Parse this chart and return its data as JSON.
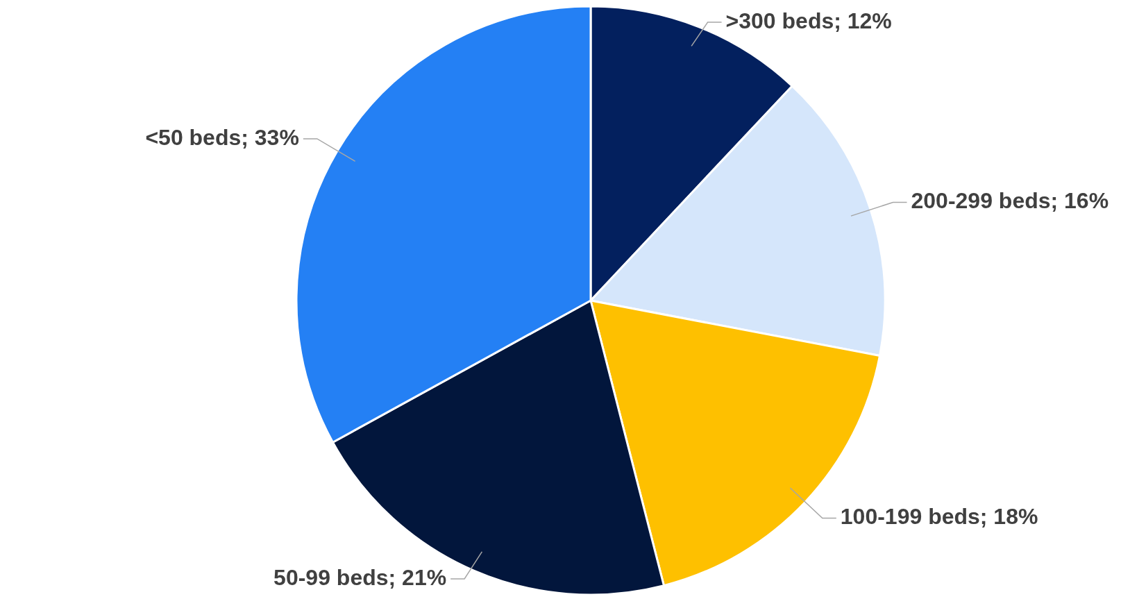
{
  "chart_data": {
    "type": "pie",
    "categories": [
      ">300 beds",
      "200-299 beds",
      "100-199 beds",
      "50-99 beds",
      "<50 beds"
    ],
    "values": [
      12,
      16,
      18,
      21,
      33
    ],
    "colors": [
      "#03205e",
      "#d5e6fb",
      "#fec000",
      "#02163c",
      "#2480f4"
    ],
    "value_labels": [
      "12%",
      "16%",
      "18%",
      "21%",
      "33%"
    ],
    "legend": false
  }
}
